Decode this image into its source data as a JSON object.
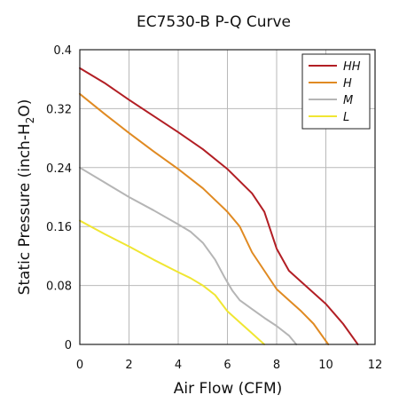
{
  "chart_data": {
    "type": "line",
    "title": "EC7530-B P-Q Curve",
    "xlabel": "Air Flow (CFM)",
    "ylabel": "Static Pressure (inch-H",
    "ylabel_sub": "2",
    "ylabel_end": "O)",
    "xlim": [
      0,
      12
    ],
    "ylim": [
      0,
      0.4
    ],
    "x_ticks": [
      "0",
      "2",
      "4",
      "6",
      "8",
      "10",
      "12"
    ],
    "y_ticks": [
      "0",
      "0.08",
      "0.16",
      "0.24",
      "0.32",
      "0.4"
    ],
    "grid": true,
    "legend_position": "top-right",
    "series": [
      {
        "name": "HH",
        "color": "#b21e24",
        "x": [
          0,
          1,
          2,
          3,
          4,
          5,
          6,
          7,
          7.5,
          8,
          8.5,
          9,
          10,
          10.7,
          11.3
        ],
        "y": [
          0.375,
          0.355,
          0.332,
          0.31,
          0.288,
          0.265,
          0.238,
          0.205,
          0.18,
          0.13,
          0.1,
          0.085,
          0.055,
          0.028,
          0.0
        ]
      },
      {
        "name": "H",
        "color": "#e08a22",
        "x": [
          0,
          1,
          2,
          3,
          4,
          5,
          6,
          6.5,
          7,
          7.5,
          8,
          8.5,
          9,
          9.5,
          10.1
        ],
        "y": [
          0.34,
          0.313,
          0.287,
          0.262,
          0.238,
          0.212,
          0.18,
          0.16,
          0.125,
          0.1,
          0.075,
          0.06,
          0.045,
          0.028,
          0.0
        ]
      },
      {
        "name": "M",
        "color": "#b5b5b5",
        "x": [
          0,
          1,
          2,
          3,
          4,
          4.5,
          5,
          5.5,
          5.9,
          6.2,
          6.5,
          7,
          7.5,
          8,
          8.5,
          8.8
        ],
        "y": [
          0.24,
          0.22,
          0.2,
          0.182,
          0.163,
          0.153,
          0.138,
          0.115,
          0.09,
          0.073,
          0.06,
          0.048,
          0.036,
          0.025,
          0.012,
          0.0
        ]
      },
      {
        "name": "L",
        "color": "#f0e632",
        "x": [
          0,
          1,
          2,
          3,
          4,
          4.5,
          5,
          5.5,
          6,
          6.5,
          7,
          7.5
        ],
        "y": [
          0.168,
          0.15,
          0.133,
          0.115,
          0.098,
          0.09,
          0.08,
          0.067,
          0.045,
          0.03,
          0.015,
          0.0
        ]
      }
    ]
  }
}
